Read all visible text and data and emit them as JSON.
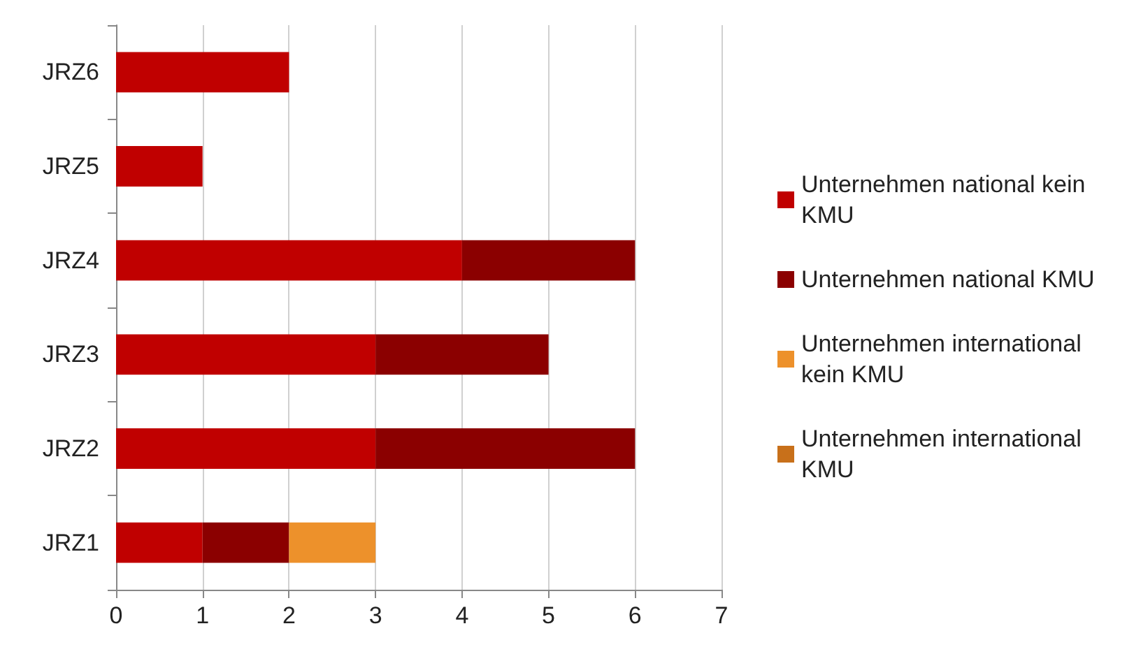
{
  "chart_data": {
    "type": "bar",
    "orientation": "horizontal",
    "stacked": true,
    "categories": [
      "JRZ6",
      "JRZ5",
      "JRZ4",
      "JRZ3",
      "JRZ2",
      "JRZ1"
    ],
    "series": [
      {
        "name": "Unternehmen national kein KMU",
        "color": "#c00000",
        "values": [
          2,
          1,
          4,
          3,
          3,
          1
        ]
      },
      {
        "name": "Unternehmen national KMU",
        "color": "#8b0000",
        "values": [
          0,
          0,
          2,
          2,
          3,
          1
        ]
      },
      {
        "name": "Unternehmen international kein KMU",
        "color": "#ed912b",
        "values": [
          0,
          0,
          0,
          0,
          0,
          1
        ]
      },
      {
        "name": "Unternehmen international KMU",
        "color": "#c8701a",
        "values": [
          0,
          0,
          0,
          0,
          0,
          0
        ]
      }
    ],
    "xlim": [
      0,
      7
    ],
    "xticks": [
      0,
      1,
      2,
      3,
      4,
      5,
      6,
      7
    ],
    "grid": "x",
    "legend": "right"
  }
}
